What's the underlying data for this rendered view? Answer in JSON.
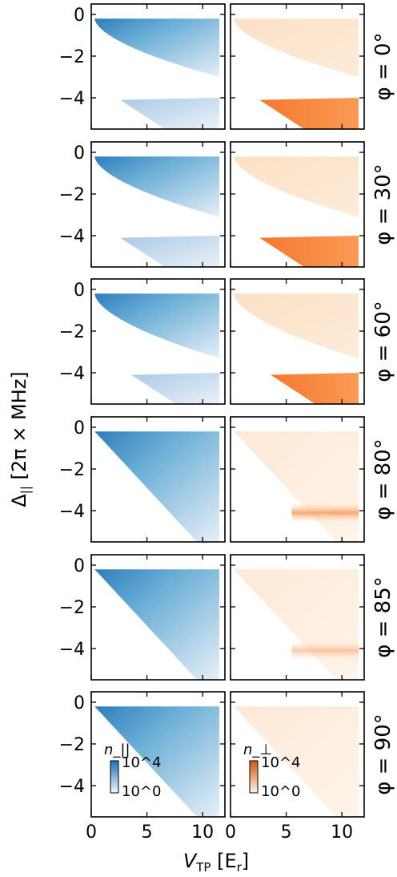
{
  "chart_data": {
    "type": "heatmap",
    "layout": "6 rows x 2 columns of panels, shared axes",
    "xlabel": "V_TP [E_r]",
    "ylabel": "Δ_|| [2π × MHz]",
    "xlim": [
      0,
      12
    ],
    "ylim": [
      -5.5,
      0.5
    ],
    "x_ticks": [
      "0",
      "5",
      "10"
    ],
    "y_ticks": [
      "0",
      "−2",
      "−4"
    ],
    "columns": [
      {
        "quantity": "n_||",
        "colormap": "Blues"
      },
      {
        "quantity": "n_⊥",
        "colormap": "Oranges"
      }
    ],
    "rows": [
      {
        "phi": "φ = 0°",
        "has_lower_band": true
      },
      {
        "phi": "φ = 30°",
        "has_lower_band": true
      },
      {
        "phi": "φ = 60°",
        "has_lower_band": true
      },
      {
        "phi": "φ = 80°",
        "has_lower_band": false
      },
      {
        "phi": "φ = 85°",
        "has_lower_band": false
      },
      {
        "phi": "φ = 90°",
        "has_lower_band": false
      }
    ],
    "colorbars": [
      {
        "label": "n_||",
        "max": "10^4",
        "min": "10^0",
        "color": "#2c7bb6"
      },
      {
        "label": "n_⊥",
        "max": "10^4",
        "min": "10^0",
        "color": "#e0632a"
      }
    ]
  },
  "labels": {
    "xlabel_main": "V",
    "xlabel_sub": "TP",
    "xlabel_unit": " [E",
    "xlabel_unit_sub": "r",
    "xlabel_close": "]",
    "ylabel_main": "Δ",
    "ylabel_sub": "||",
    "ylabel_rest": " [2π × MHz]"
  }
}
